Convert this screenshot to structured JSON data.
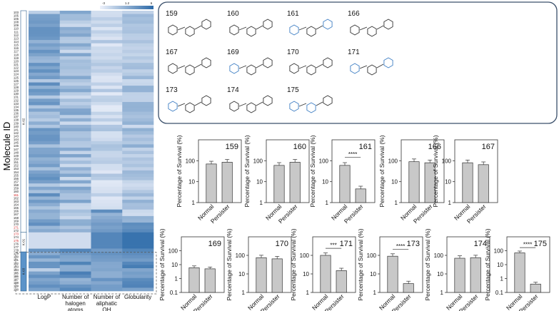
{
  "figure": {
    "heatmap": {
      "ylabel": "Molecule ID",
      "columns": [
        "LogP",
        "Number of halogen atoms",
        "Number of aliphatic OH",
        "Globularity"
      ],
      "column_lines": [
        [
          "LogP"
        ],
        [
          "Number of",
          "halogen",
          "atoms"
        ],
        [
          "Number of",
          "aliphatic",
          "OH"
        ],
        [
          "Globularity"
        ]
      ],
      "scale_labels": [
        "-3",
        "1.2",
        "6"
      ],
      "cluster_labels": [
        "K-02",
        "K-01",
        "K-03"
      ],
      "row_labels": [
        "103",
        "105",
        "106",
        "108",
        "109",
        "110",
        "111",
        "112",
        "113",
        "114",
        "115",
        "116",
        "117",
        "118",
        "119",
        "120",
        "121",
        "122",
        "123",
        "124",
        "125",
        "126",
        "127",
        "128",
        "129",
        "130",
        "131",
        "132",
        "133",
        "134",
        "135",
        "136",
        "137",
        "138",
        "139",
        "140",
        "141",
        "142",
        "143",
        "144",
        "145",
        "146",
        "147",
        "148",
        "149",
        "150",
        "151",
        "152",
        "153",
        "154",
        "155",
        "156",
        "157",
        "158",
        "159",
        "160",
        "161",
        "162",
        "163",
        "164",
        "165",
        "166",
        "167",
        "168",
        "169",
        "170",
        "171",
        "172",
        "173",
        "174",
        "175",
        "176",
        "177",
        "178",
        "179",
        "180",
        "181",
        "182",
        "183",
        "184",
        "185",
        "186",
        "187",
        "188",
        "189",
        "190"
      ],
      "highlight_rows": [
        "161",
        "171",
        "173",
        "175"
      ]
    },
    "molecules": [
      "159",
      "160",
      "161",
      "166",
      "167",
      "169",
      "170",
      "171",
      "173",
      "174",
      "175"
    ],
    "bar_axis": {
      "ylabel": "Percentage of Survival (%)",
      "categories": [
        "Normal",
        "Persister"
      ]
    }
  },
  "chart_data": [
    {
      "type": "heatmap",
      "title": "",
      "columns": [
        "LogP",
        "Number of halogen atoms",
        "Number of aliphatic OH",
        "Globularity"
      ],
      "colorbar": {
        "min": -3,
        "mid": 1.2,
        "max": 6
      },
      "clusters": [
        {
          "name": "K-02"
        },
        {
          "name": "K-01"
        },
        {
          "name": "K-03"
        }
      ]
    },
    {
      "type": "bar",
      "title": "159",
      "categories": [
        "Normal",
        "Persister"
      ],
      "values": [
        70,
        85
      ],
      "yscale": "log",
      "ylim": [
        1,
        1000
      ],
      "yticks": [
        1,
        10,
        100
      ],
      "significance": ""
    },
    {
      "type": "bar",
      "title": "160",
      "categories": [
        "Normal",
        "Persister"
      ],
      "values": [
        60,
        85
      ],
      "yscale": "log",
      "ylim": [
        1,
        1000
      ],
      "yticks": [
        1,
        10,
        100
      ],
      "significance": ""
    },
    {
      "type": "bar",
      "title": "161",
      "categories": [
        "Normal",
        "Persister"
      ],
      "values": [
        60,
        4.5
      ],
      "yscale": "log",
      "ylim": [
        1,
        1000
      ],
      "yticks": [
        1,
        10,
        100
      ],
      "significance": "****"
    },
    {
      "type": "bar",
      "title": "166",
      "categories": [
        "Normal",
        "Persister"
      ],
      "values": [
        90,
        80
      ],
      "yscale": "log",
      "ylim": [
        1,
        1000
      ],
      "yticks": [
        1,
        10,
        100
      ],
      "significance": ""
    },
    {
      "type": "bar",
      "title": "167",
      "categories": [
        "Normal",
        "Persister"
      ],
      "values": [
        80,
        65
      ],
      "yscale": "log",
      "ylim": [
        1,
        1000
      ],
      "yticks": [
        1,
        10,
        100
      ],
      "significance": ""
    },
    {
      "type": "bar",
      "title": "169",
      "categories": [
        "Normal",
        "Persister"
      ],
      "values": [
        6,
        5
      ],
      "yscale": "log",
      "ylim": [
        0.1,
        1000
      ],
      "yticks": [
        0.1,
        1,
        10,
        100
      ],
      "significance": ""
    },
    {
      "type": "bar",
      "title": "170",
      "categories": [
        "Normal",
        "Persister"
      ],
      "values": [
        75,
        65
      ],
      "yscale": "log",
      "ylim": [
        1,
        1000
      ],
      "yticks": [
        1,
        10,
        100
      ],
      "significance": ""
    },
    {
      "type": "bar",
      "title": "171",
      "categories": [
        "Normal",
        "Persister"
      ],
      "values": [
        100,
        15
      ],
      "yscale": "log",
      "ylim": [
        1,
        1000
      ],
      "yticks": [
        1,
        10,
        100
      ],
      "significance": "***"
    },
    {
      "type": "bar",
      "title": "173",
      "categories": [
        "Normal",
        "Persister"
      ],
      "values": [
        90,
        3
      ],
      "yscale": "log",
      "ylim": [
        1,
        1000
      ],
      "yticks": [
        1,
        10,
        100
      ],
      "significance": "****"
    },
    {
      "type": "bar",
      "title": "174",
      "categories": [
        "Normal",
        "Persister"
      ],
      "values": [
        70,
        75
      ],
      "yscale": "log",
      "ylim": [
        1,
        1000
      ],
      "yticks": [
        1,
        10,
        100
      ],
      "significance": ""
    },
    {
      "type": "bar",
      "title": "175",
      "categories": [
        "Normal",
        "Persister"
      ],
      "values": [
        70,
        0.4
      ],
      "yscale": "log",
      "ylim": [
        0.1,
        1000
      ],
      "yticks": [
        0.1,
        1,
        10,
        100
      ],
      "significance": "****"
    }
  ]
}
